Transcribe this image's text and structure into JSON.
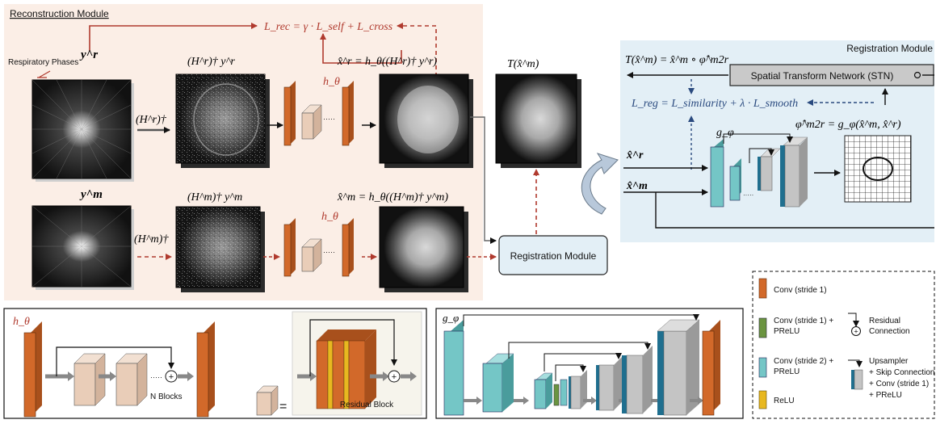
{
  "recon": {
    "title": "Reconstruction Module",
    "loss": "L_rec = γ · L_self + L_cross",
    "resp_label": "Respiratory Phases",
    "y_r": "y^r",
    "y_m": "y^m",
    "H_r_adj": "(H^r)†",
    "H_m_adj": "(H^m)†",
    "xr_init": "(H^r)† y^r",
    "xm_init": "(H^m)† y^m",
    "xr_hat": "x̂^r = h_θ((H^r)† y^r)",
    "xm_hat": "x̂^m = h_θ((H^m)† y^m)",
    "h_theta": "h_θ",
    "T_xm": "T(x̂^m)",
    "dots": "·····"
  },
  "reg": {
    "title": "Registration Module",
    "warp_eq": "T(x̂^m) = x̂^m ∘ φ̂^m2r",
    "stn": "Spatial Transform Network (STN)",
    "loss": "L_reg = L_similarity + λ · L_smooth",
    "phi_eq": "φ̂^m2r = g_φ(x̂^m, x̂^r)",
    "g_phi": "g_φ",
    "xr": "x̂^r",
    "xm": "x̂^m",
    "button": "Registration Module"
  },
  "bottom": {
    "h_theta": "h_θ",
    "n_blocks": "N Blocks",
    "equals": "=",
    "residual_block": "Residual Block",
    "g_phi": "g_φ",
    "dots": "·····"
  },
  "legend": {
    "items": [
      {
        "label": "Conv (stride 1)",
        "color": "#d2692a"
      },
      {
        "label": "Conv (stride 1) + PReLU",
        "color": "#6b9440"
      },
      {
        "label": "Conv (stride 2) + PReLU",
        "color": "#74c6c6"
      },
      {
        "label": "ReLU",
        "color": "#e8b820"
      }
    ],
    "residual": "Residual Connection",
    "upsampler": "Upsampler + Skip Connection + Conv (stride 1) + PReLU"
  },
  "colors": {
    "recon_bg": "#fbeee6",
    "reg_bg": "#e3eff6",
    "conv": "#d2692a",
    "block": "#e9cdb8",
    "teal": "#74c6c6",
    "dark_teal": "#1f6f8f",
    "gray": "#c4c4c4",
    "red": "#b03a2e",
    "navy": "#2a4a7f"
  }
}
